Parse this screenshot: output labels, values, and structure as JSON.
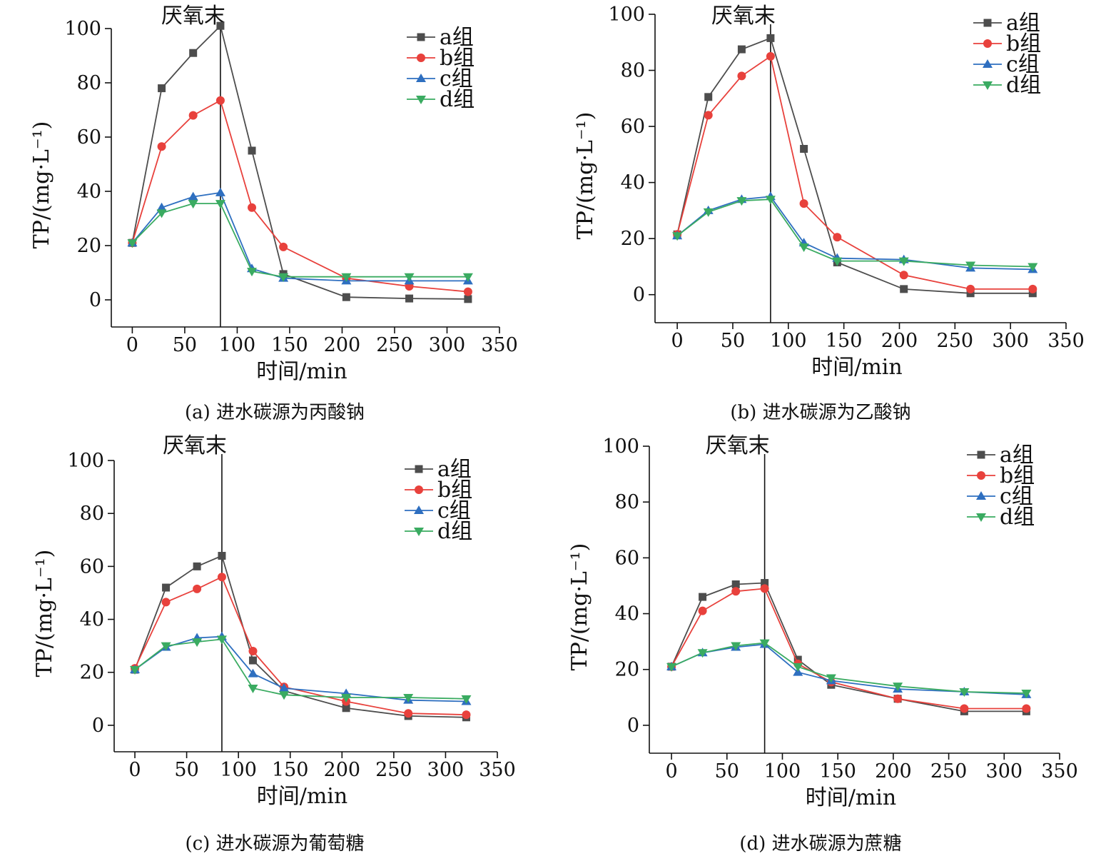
{
  "figure": {
    "series_names": [
      "a组",
      "b组",
      "c组",
      "d组"
    ],
    "series_colors": [
      "#4d4d4d",
      "#e8413c",
      "#2e6fc0",
      "#3aab61"
    ],
    "series_markers": [
      "square",
      "circle",
      "triangle-up",
      "triangle-down"
    ]
  },
  "chart_data": [
    {
      "type": "line",
      "caption": "(a) 进水碳源为丙酸钠",
      "xlabel": "时间/min",
      "ylabel": "TP/(mg·L⁻¹)",
      "xlim": [
        -20,
        350
      ],
      "ylim": [
        -10,
        100
      ],
      "xticks": [
        0,
        50,
        100,
        150,
        200,
        250,
        300,
        350
      ],
      "yticks": [
        0,
        20,
        40,
        60,
        80,
        100
      ],
      "annotation": {
        "label": "厌氧末",
        "x": 84
      },
      "x": [
        0,
        28,
        58,
        84,
        114,
        144,
        204,
        264,
        320
      ],
      "series": [
        {
          "name": "a组",
          "values": [
            21,
            78,
            91,
            101,
            55,
            9.5,
            1,
            0.5,
            0.3
          ]
        },
        {
          "name": "b组",
          "values": [
            21,
            56.5,
            68,
            73.5,
            34,
            19.5,
            8,
            5,
            3
          ]
        },
        {
          "name": "c组",
          "values": [
            21,
            34,
            38,
            39.5,
            11.5,
            8,
            7,
            7,
            7
          ]
        },
        {
          "name": "d组",
          "values": [
            21,
            32,
            35.5,
            35.5,
            10.5,
            8.5,
            8.5,
            8.5,
            8.5
          ]
        }
      ],
      "legend": "top-right",
      "grid": false
    },
    {
      "type": "line",
      "caption": "(b) 进水碳源为乙酸钠",
      "xlabel": "时间/min",
      "ylabel": "TP/(mg·L⁻¹)",
      "xlim": [
        -20,
        350
      ],
      "ylim": [
        -10,
        100
      ],
      "xticks": [
        0,
        50,
        100,
        150,
        200,
        250,
        300,
        350
      ],
      "yticks": [
        0,
        20,
        40,
        60,
        80,
        100
      ],
      "annotation": {
        "label": "厌氧末",
        "x": 84
      },
      "x": [
        0,
        28,
        58,
        84,
        114,
        144,
        204,
        264,
        320
      ],
      "series": [
        {
          "name": "a组",
          "values": [
            21.5,
            70.5,
            87.5,
            91.5,
            52,
            11.5,
            2,
            0.5,
            0.5
          ]
        },
        {
          "name": "b组",
          "values": [
            21.5,
            64,
            78,
            85,
            32.5,
            20.5,
            7,
            2,
            2
          ]
        },
        {
          "name": "c组",
          "values": [
            21,
            30,
            34,
            35,
            18.5,
            13,
            12.5,
            9.5,
            9
          ]
        },
        {
          "name": "d组",
          "values": [
            21,
            29.5,
            33.5,
            34,
            17,
            12,
            12,
            10.5,
            10
          ]
        }
      ],
      "legend": "top-right",
      "grid": false
    },
    {
      "type": "line",
      "caption": "(c) 进水碳源为葡萄糖",
      "xlabel": "时间/min",
      "ylabel": "TP/(mg·L⁻¹)",
      "xlim": [
        -20,
        350
      ],
      "ylim": [
        -10,
        100
      ],
      "xticks": [
        0,
        50,
        100,
        150,
        200,
        250,
        300,
        350
      ],
      "yticks": [
        0,
        20,
        40,
        60,
        80,
        100
      ],
      "annotation": {
        "label": "厌氧末",
        "x": 84
      },
      "x": [
        0,
        30,
        60,
        84,
        114,
        144,
        204,
        264,
        320
      ],
      "series": [
        {
          "name": "a组",
          "values": [
            21,
            52,
            60,
            64,
            24.5,
            13,
            6.5,
            3.5,
            3
          ]
        },
        {
          "name": "b组",
          "values": [
            21.5,
            46.5,
            51.5,
            56,
            28,
            14.5,
            9,
            4.5,
            4
          ]
        },
        {
          "name": "c组",
          "values": [
            21,
            29.5,
            33,
            33.5,
            19.5,
            14,
            12,
            9.5,
            9
          ]
        },
        {
          "name": "d组",
          "values": [
            21,
            30,
            31.5,
            32.5,
            14,
            11.5,
            10.5,
            10.5,
            10
          ]
        }
      ],
      "legend": "top-right",
      "grid": false
    },
    {
      "type": "line",
      "caption": "(d) 进水碳源为蔗糖",
      "xlabel": "时间/min",
      "ylabel": "TP/(mg·L⁻¹)",
      "xlim": [
        -20,
        350
      ],
      "ylim": [
        -10,
        100
      ],
      "xticks": [
        0,
        50,
        100,
        150,
        200,
        250,
        300,
        350
      ],
      "yticks": [
        0,
        20,
        40,
        60,
        80,
        100
      ],
      "annotation": {
        "label": "厌氧末",
        "x": 84
      },
      "x": [
        0,
        28,
        58,
        84,
        114,
        144,
        204,
        264,
        320
      ],
      "series": [
        {
          "name": "a组",
          "values": [
            21,
            46,
            50.5,
            51,
            23.5,
            14.5,
            9.5,
            5,
            5
          ]
        },
        {
          "name": "b组",
          "values": [
            21,
            41,
            48,
            49,
            22,
            15.5,
            9.5,
            6,
            6
          ]
        },
        {
          "name": "c组",
          "values": [
            21,
            26,
            28,
            29,
            19,
            16,
            13,
            12,
            11
          ]
        },
        {
          "name": "d组",
          "values": [
            21,
            26,
            28.5,
            29.5,
            21,
            17,
            14,
            12,
            11.5
          ]
        }
      ],
      "legend": "top-right",
      "grid": false
    }
  ]
}
